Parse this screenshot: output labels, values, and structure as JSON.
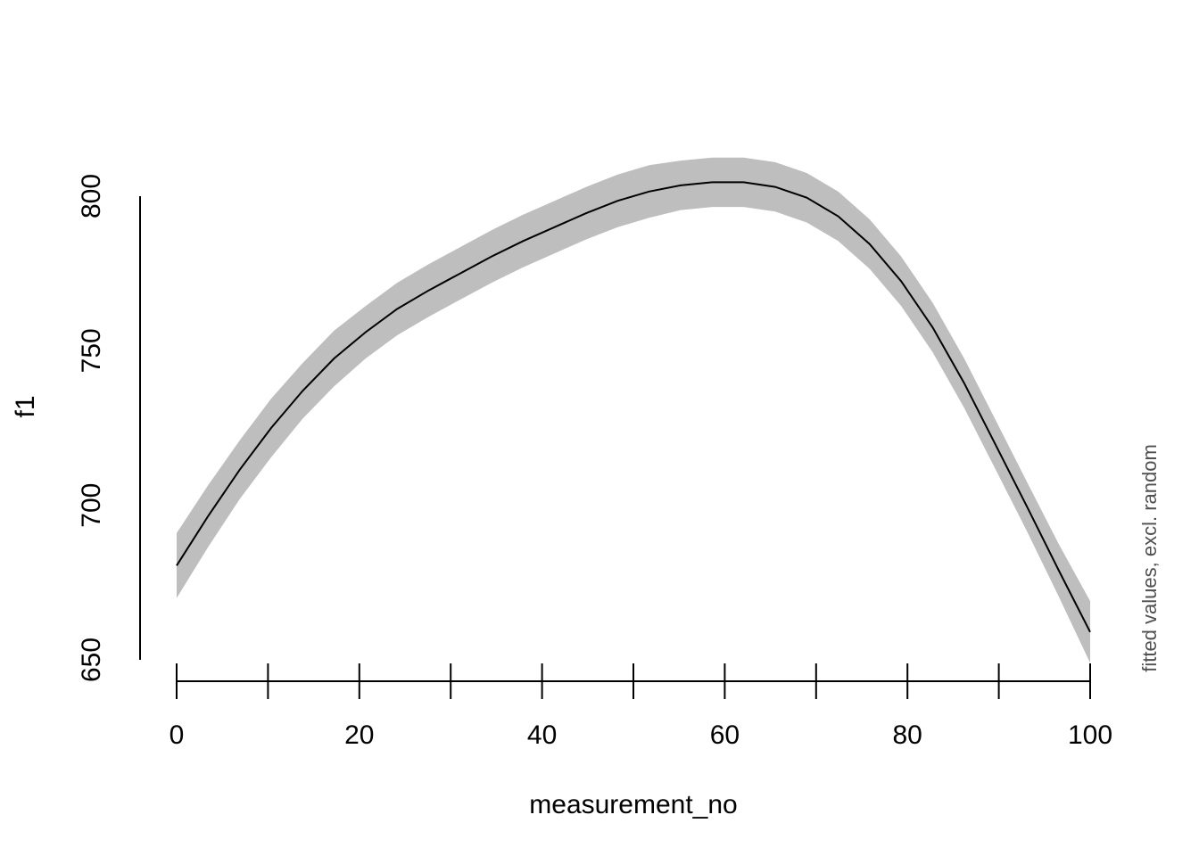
{
  "chart_data": {
    "type": "line",
    "xlabel": "measurement_no",
    "ylabel": "f1",
    "side_note": "fitted values, excl. random",
    "xlim": [
      0,
      100
    ],
    "ylim": [
      650,
      800
    ],
    "x_ticks": [
      0,
      10,
      20,
      30,
      40,
      50,
      60,
      70,
      80,
      90,
      100
    ],
    "x_tick_labels": [
      "0",
      "",
      "20",
      "",
      "40",
      "",
      "60",
      "",
      "80",
      "",
      "100"
    ],
    "y_ticks": [
      650,
      700,
      750,
      800
    ],
    "y_tick_labels": [
      "650",
      "700",
      "750",
      "800"
    ],
    "grid": false,
    "band_color": "#bebebe",
    "line_color": "#000000",
    "series": [
      {
        "x": [
          0,
          3.45,
          6.9,
          10.34,
          13.79,
          17.24,
          20.69,
          24.14,
          27.59,
          31.03,
          34.48,
          37.93,
          41.38,
          44.83,
          48.28,
          51.72,
          55.17,
          58.62,
          62.07,
          65.52,
          68.97,
          72.41,
          75.86,
          79.31,
          82.76,
          86.21,
          89.66,
          93.1,
          96.55,
          100
        ],
        "fit": [
          680.5,
          696.5,
          711.5,
          725,
          737,
          747.5,
          756,
          763.5,
          769.5,
          775,
          780.5,
          785.5,
          790,
          794.5,
          798.5,
          801.5,
          803.5,
          804.5,
          804.5,
          803,
          799.5,
          793.5,
          784.5,
          772.5,
          757.5,
          739.5,
          719.5,
          699.5,
          679,
          659
        ],
        "lower": [
          670,
          686.5,
          702,
          715.5,
          728,
          738.5,
          747.5,
          755,
          761,
          766.5,
          772,
          777,
          781.5,
          786,
          790,
          793,
          795.5,
          796.5,
          796.5,
          795,
          791.5,
          785.5,
          776.5,
          764.5,
          749.5,
          731.5,
          711.5,
          691.5,
          670.5,
          649
        ],
        "upper": [
          691,
          706.5,
          721,
          734.5,
          746,
          756.5,
          764.5,
          772,
          778,
          783.5,
          789,
          794,
          798.5,
          803,
          807,
          810,
          811.5,
          812.5,
          812.5,
          811,
          807.5,
          801.5,
          792.5,
          780.5,
          765.5,
          747.5,
          727.5,
          707.5,
          687.5,
          669
        ]
      }
    ]
  }
}
